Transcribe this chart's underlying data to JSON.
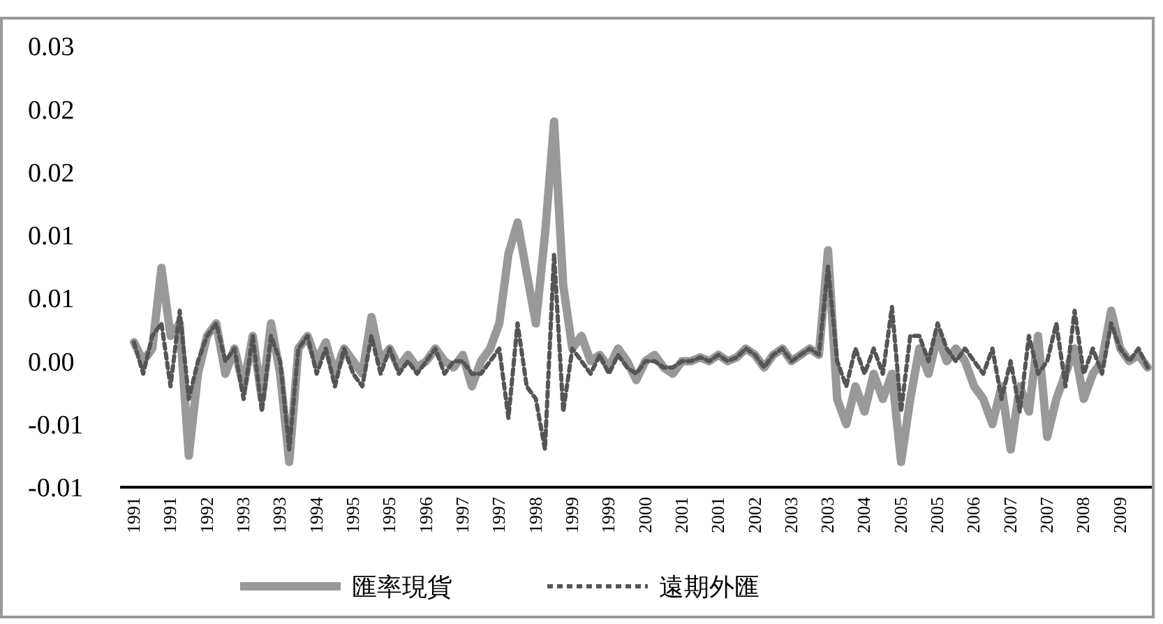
{
  "chart_data": {
    "type": "line",
    "categories": [
      "1991",
      null,
      null,
      null,
      "1991",
      null,
      null,
      null,
      "1992",
      null,
      null,
      null,
      "1993",
      null,
      null,
      null,
      "1993",
      null,
      null,
      null,
      "1994",
      null,
      null,
      null,
      "1995",
      null,
      null,
      null,
      "1995",
      null,
      null,
      null,
      "1996",
      null,
      null,
      null,
      "1997",
      null,
      null,
      null,
      "1997",
      null,
      null,
      null,
      "1998",
      null,
      null,
      null,
      "1999",
      null,
      null,
      null,
      "1999",
      null,
      null,
      null,
      "2000",
      null,
      null,
      null,
      "2001",
      null,
      null,
      null,
      "2001",
      null,
      null,
      null,
      "2002",
      null,
      null,
      null,
      "2003",
      null,
      null,
      null,
      "2003",
      null,
      null,
      null,
      "2004",
      null,
      null,
      null,
      "2005",
      null,
      null,
      null,
      "2005",
      null,
      null,
      null,
      "2006",
      null,
      null,
      null,
      "2007",
      null,
      null,
      null,
      "2007",
      null,
      null,
      null,
      "2008",
      null,
      null,
      null,
      "2009",
      null,
      null,
      null
    ],
    "ylim": [
      -0.01,
      0.025
    ],
    "yticks": [
      {
        "value": -0.01,
        "label": "-0.01"
      },
      {
        "value": -0.005,
        "label": "-0.01"
      },
      {
        "value": 0,
        "label": "0.00"
      },
      {
        "value": 0.005,
        "label": "0.01"
      },
      {
        "value": 0.01,
        "label": "0.01"
      },
      {
        "value": 0.015,
        "label": "0.02"
      },
      {
        "value": 0.02,
        "label": "0.02"
      },
      {
        "value": 0.025,
        "label": "0.03"
      }
    ],
    "legend": "bottom",
    "series": [
      {
        "name": "匯率現貨",
        "color": "#999999",
        "line_style": "solid",
        "values": [
          0.0015,
          0,
          0.001,
          0.0074,
          0.002,
          0.003,
          -0.0075,
          -0.001,
          0.002,
          0.003,
          -0.001,
          0.001,
          -0.002,
          0.002,
          -0.003,
          0.003,
          -0.001,
          -0.008,
          0.001,
          0.002,
          0,
          0.0015,
          -0.001,
          0.001,
          0,
          -0.001,
          0.0035,
          0,
          0.001,
          -0.0005,
          0.0005,
          -0.0005,
          0,
          0.001,
          0,
          -0.0005,
          0.0005,
          -0.002,
          0,
          0.001,
          0.003,
          0.0085,
          0.011,
          0.007,
          0.003,
          0.01,
          0.019,
          0.006,
          0.001,
          0.002,
          0,
          0.0005,
          -0.0005,
          0.001,
          0,
          -0.0015,
          0,
          0.0005,
          -0.0005,
          -0.001,
          0,
          0,
          0.0003,
          0,
          0.0005,
          0,
          0.0003,
          0.001,
          0.0005,
          -0.0005,
          0.0005,
          0.001,
          0,
          0.0005,
          0.001,
          0.0005,
          0.0088,
          -0.003,
          -0.005,
          -0.002,
          -0.004,
          -0.001,
          -0.003,
          -0.001,
          -0.008,
          -0.003,
          0.001,
          -0.001,
          0.002,
          0,
          0.001,
          0,
          -0.002,
          -0.003,
          -0.005,
          -0.002,
          -0.007,
          -0.002,
          -0.004,
          0.002,
          -0.006,
          -0.003,
          -0.001,
          0.001,
          -0.003,
          -0.001,
          0,
          0.004,
          0.001,
          0,
          0.0005,
          -0.0005
        ]
      },
      {
        "name": "遠期外匯",
        "color": "#555555",
        "line_style": "dashed",
        "values": [
          0.0015,
          -0.001,
          0.002,
          0.003,
          -0.002,
          0.004,
          -0.003,
          0,
          0.002,
          0.003,
          0,
          0.001,
          -0.003,
          0.002,
          -0.004,
          0.002,
          0,
          -0.007,
          0.001,
          0.002,
          -0.001,
          0.001,
          -0.002,
          0.001,
          -0.001,
          -0.002,
          0.002,
          -0.001,
          0.001,
          -0.001,
          0,
          -0.001,
          0,
          0.001,
          -0.001,
          0,
          0,
          -0.001,
          -0.001,
          0,
          0.001,
          -0.0045,
          0.003,
          -0.002,
          -0.003,
          -0.007,
          0.0085,
          -0.004,
          0.001,
          0,
          -0.001,
          0.0005,
          -0.001,
          0.0005,
          -0.0005,
          -0.001,
          0,
          0,
          -0.0005,
          -0.0005,
          0,
          0,
          0.0003,
          0,
          0.0005,
          0,
          0.0003,
          0.001,
          0.0005,
          -0.0005,
          0.0005,
          0.001,
          0,
          0.0005,
          0.001,
          0.0005,
          0.0075,
          0,
          -0.002,
          0.001,
          -0.001,
          0.001,
          -0.001,
          0.0043,
          -0.004,
          0.002,
          0.002,
          0,
          0.003,
          0.001,
          0,
          0.001,
          0,
          -0.001,
          0.001,
          -0.003,
          0,
          -0.004,
          0.002,
          -0.001,
          0,
          0.003,
          -0.002,
          0.004,
          -0.001,
          0.001,
          -0.001,
          0.003,
          0.001,
          0,
          0.001,
          -0.0005
        ]
      }
    ]
  }
}
